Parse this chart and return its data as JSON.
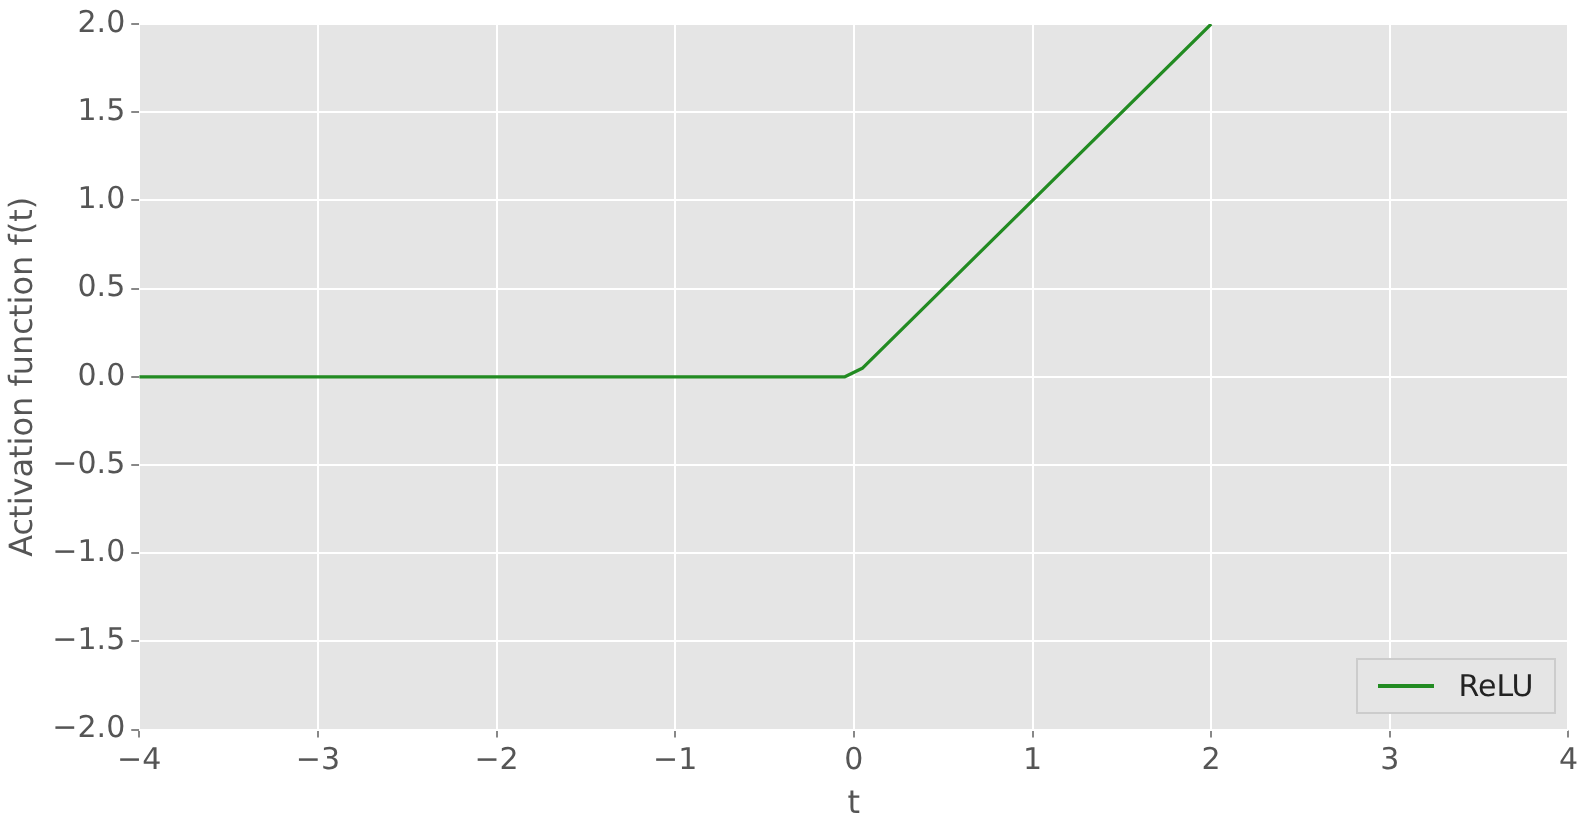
{
  "chart_data": {
    "type": "line",
    "xlabel": "t",
    "ylabel": "Activation function f(t)",
    "series": [
      {
        "name": "ReLU",
        "color": "#228b22",
        "x": [
          -4,
          -0.05,
          0.05,
          2
        ],
        "values": [
          0,
          0,
          0.05,
          2
        ]
      }
    ],
    "xlim": [
      -4,
      4
    ],
    "xticks": [
      {
        "value": -4,
        "label": "−4"
      },
      {
        "value": -3,
        "label": "−3"
      },
      {
        "value": -2,
        "label": "−2"
      },
      {
        "value": -1,
        "label": "−1"
      },
      0,
      1,
      2,
      3,
      4
    ],
    "ylim": [
      -2,
      2
    ],
    "yticks": [
      {
        "value": -2,
        "label": "−2.0"
      },
      {
        "value": -1.5,
        "label": "−1.5"
      },
      {
        "value": -1,
        "label": "−1.0"
      },
      {
        "value": -0.5,
        "label": "−0.5"
      },
      {
        "value": 0,
        "label": "0.0"
      },
      {
        "value": 0.5,
        "label": "0.5"
      },
      {
        "value": 1,
        "label": "1.0"
      },
      {
        "value": 1.5,
        "label": "1.5"
      },
      {
        "value": 2,
        "label": "2.0"
      }
    ],
    "grid": true,
    "legend": "bottom right",
    "marker": "none",
    "line_style": "solid"
  }
}
